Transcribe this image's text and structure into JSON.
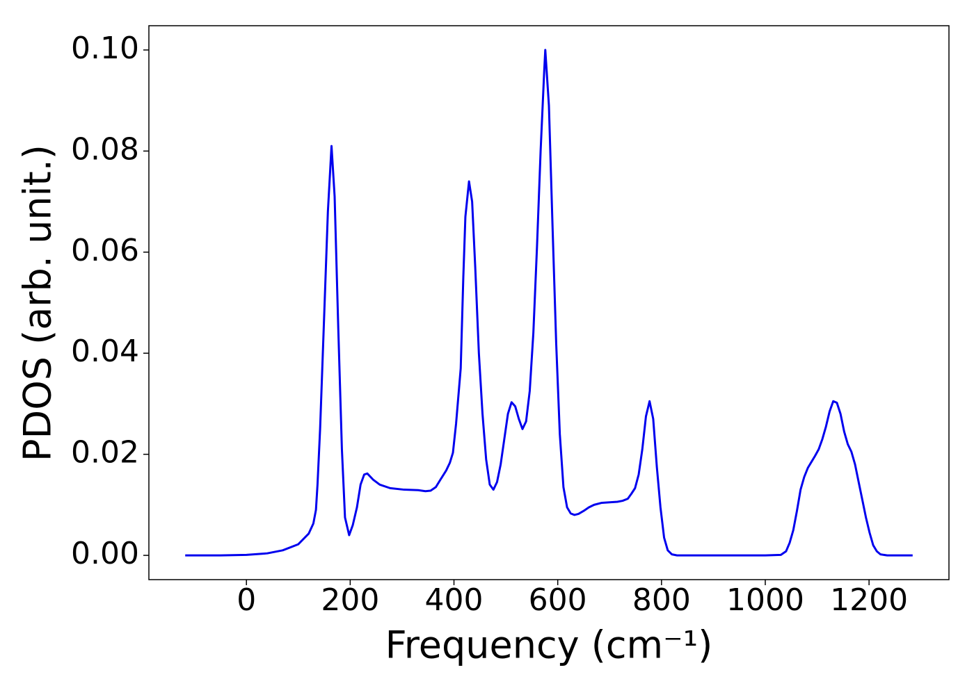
{
  "chart_data": {
    "type": "line",
    "xlabel": "Frequency (cm⁻¹)",
    "ylabel": "PDOS (arb. unit.)",
    "xlim": [
      -188,
      1354
    ],
    "ylim": [
      -0.0048,
      0.1048
    ],
    "xticks": [
      0,
      200,
      400,
      600,
      800,
      1000,
      1200
    ],
    "yticks": [
      {
        "value": 0,
        "label": "0.00"
      },
      {
        "value": 0.02,
        "label": "0.02"
      },
      {
        "value": 0.04,
        "label": "0.04"
      },
      {
        "value": 0.06,
        "label": "0.06"
      },
      {
        "value": 0.08,
        "label": "0.08"
      },
      {
        "value": 0.1,
        "label": "0.10"
      }
    ],
    "grid": false,
    "x": [
      -118,
      -50,
      0,
      40,
      70,
      100,
      120,
      129,
      134,
      137,
      142,
      149,
      157,
      164,
      170,
      177,
      184,
      190,
      198,
      205,
      213,
      220,
      227,
      233,
      244,
      257,
      277,
      304,
      331,
      345,
      355,
      365,
      374,
      385,
      392,
      398,
      404,
      413,
      418,
      422,
      429,
      435,
      441,
      448,
      455,
      462,
      469,
      476,
      483,
      490,
      497,
      504,
      511,
      518,
      525,
      532,
      539,
      546,
      553,
      560,
      567,
      574,
      576,
      583,
      590,
      597,
      604,
      611,
      618,
      625,
      632,
      640,
      650,
      660,
      670,
      685,
      700,
      715,
      725,
      735,
      742,
      749,
      756,
      763,
      770,
      777,
      784,
      791,
      798,
      805,
      812,
      820,
      830,
      900,
      1000,
      1030,
      1040,
      1047,
      1054,
      1061,
      1068,
      1075,
      1082,
      1089,
      1096,
      1103,
      1110,
      1117,
      1124,
      1131,
      1138,
      1145,
      1152,
      1159,
      1166,
      1173,
      1180,
      1187,
      1194,
      1201,
      1208,
      1215,
      1222,
      1235,
      1284
    ],
    "series": [
      {
        "name": "PDOS",
        "color": "#0000ee",
        "values": [
          0,
          0,
          0.0001,
          0.0004,
          0.001,
          0.0022,
          0.0043,
          0.0063,
          0.009,
          0.014,
          0.025,
          0.045,
          0.068,
          0.081,
          0.071,
          0.045,
          0.021,
          0.0075,
          0.004,
          0.006,
          0.0095,
          0.014,
          0.016,
          0.0162,
          0.015,
          0.014,
          0.0133,
          0.013,
          0.0129,
          0.0127,
          0.0128,
          0.0135,
          0.015,
          0.0168,
          0.0183,
          0.0203,
          0.026,
          0.037,
          0.055,
          0.067,
          0.074,
          0.07,
          0.057,
          0.04,
          0.028,
          0.019,
          0.014,
          0.013,
          0.0145,
          0.018,
          0.023,
          0.028,
          0.0303,
          0.0295,
          0.027,
          0.025,
          0.0265,
          0.0325,
          0.044,
          0.061,
          0.08,
          0.096,
          0.1,
          0.089,
          0.065,
          0.042,
          0.024,
          0.0135,
          0.0095,
          0.0083,
          0.008,
          0.0082,
          0.0088,
          0.0095,
          0.01,
          0.0104,
          0.0105,
          0.0106,
          0.0108,
          0.0112,
          0.0122,
          0.0133,
          0.016,
          0.021,
          0.0275,
          0.0305,
          0.027,
          0.0175,
          0.0095,
          0.0035,
          0.001,
          0.0002,
          0,
          0,
          0,
          0.0001,
          0.0008,
          0.0025,
          0.005,
          0.0088,
          0.013,
          0.0155,
          0.0173,
          0.0185,
          0.0197,
          0.021,
          0.023,
          0.0255,
          0.0285,
          0.0305,
          0.0302,
          0.028,
          0.0245,
          0.022,
          0.0205,
          0.018,
          0.0145,
          0.011,
          0.0075,
          0.0045,
          0.002,
          0.0008,
          0.0002,
          0,
          0
        ]
      }
    ]
  }
}
